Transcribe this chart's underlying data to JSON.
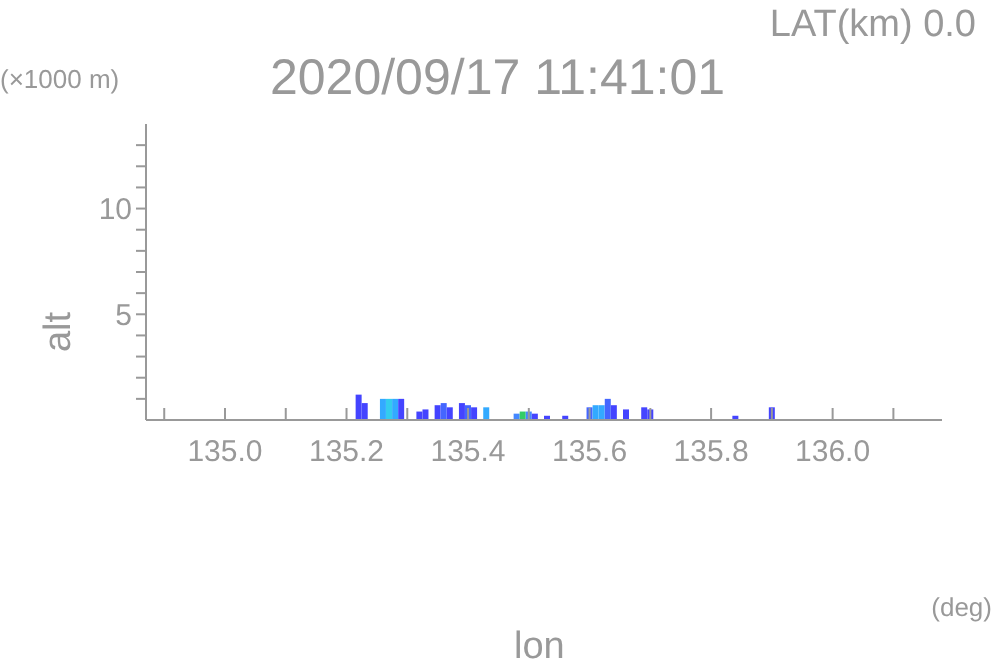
{
  "chart_data": {
    "type": "bar",
    "title": "2020/09/17 11:41:01",
    "subtitle": "LAT(km) 0.0",
    "xlabel": "lon",
    "ylabel": "alt",
    "annotations": [
      "(×1000 m)",
      "(deg)"
    ],
    "x": [
      135.22,
      135.23,
      135.26,
      135.27,
      135.28,
      135.29,
      135.32,
      135.33,
      135.35,
      135.36,
      135.37,
      135.39,
      135.4,
      135.41,
      135.43,
      135.48,
      135.49,
      135.5,
      135.51,
      135.53,
      135.56,
      135.6,
      135.61,
      135.62,
      135.63,
      135.64,
      135.66,
      135.69,
      135.7,
      135.84,
      135.9
    ],
    "values": [
      1.2,
      0.8,
      1.0,
      1.0,
      1.0,
      1.0,
      0.4,
      0.5,
      0.7,
      0.8,
      0.6,
      0.8,
      0.7,
      0.6,
      0.6,
      0.3,
      0.4,
      0.4,
      0.3,
      0.2,
      0.2,
      0.6,
      0.7,
      0.7,
      1.0,
      0.7,
      0.5,
      0.6,
      0.5,
      0.2,
      0.6
    ],
    "colors": [
      "#4444ff",
      "#4444ff",
      "#33aaff",
      "#33ccee",
      "#33aaff",
      "#4444ff",
      "#4444ff",
      "#4444ff",
      "#4444ff",
      "#4466ff",
      "#4444ff",
      "#4444ff",
      "#4466ff",
      "#4444ff",
      "#33aaff",
      "#4488ff",
      "#33cc66",
      "#4488ff",
      "#4444ff",
      "#4444ff",
      "#4444ff",
      "#4466ff",
      "#33aaff",
      "#33aaff",
      "#4466ff",
      "#4444ff",
      "#4444ff",
      "#4444ff",
      "#4444ff",
      "#4444ff",
      "#4444ff"
    ],
    "xlim": [
      134.87,
      136.18
    ],
    "xticks": [
      {
        "value": 134.9,
        "label": null
      },
      {
        "value": 135.0,
        "label": "135.0"
      },
      {
        "value": 135.1,
        "label": null
      },
      {
        "value": 135.2,
        "label": "135.2"
      },
      {
        "value": 135.3,
        "label": null
      },
      {
        "value": 135.4,
        "label": "135.4"
      },
      {
        "value": 135.5,
        "label": null
      },
      {
        "value": 135.6,
        "label": "135.6"
      },
      {
        "value": 135.7,
        "label": null
      },
      {
        "value": 135.8,
        "label": "135.8"
      },
      {
        "value": 135.9,
        "label": null
      },
      {
        "value": 136.0,
        "label": "136.0"
      },
      {
        "value": 136.1,
        "label": null
      }
    ],
    "ylim": [
      0,
      14
    ],
    "yticks": [
      {
        "value": 1,
        "label": null
      },
      {
        "value": 2,
        "label": null
      },
      {
        "value": 3,
        "label": null
      },
      {
        "value": 4,
        "label": null
      },
      5,
      {
        "value": 6,
        "label": null
      },
      {
        "value": 7,
        "label": null
      },
      {
        "value": 8,
        "label": null
      },
      {
        "value": 9,
        "label": null
      },
      10,
      {
        "value": 11,
        "label": null
      },
      {
        "value": 12,
        "label": null
      },
      {
        "value": 13,
        "label": null
      }
    ],
    "grid": false,
    "legend": false
  }
}
